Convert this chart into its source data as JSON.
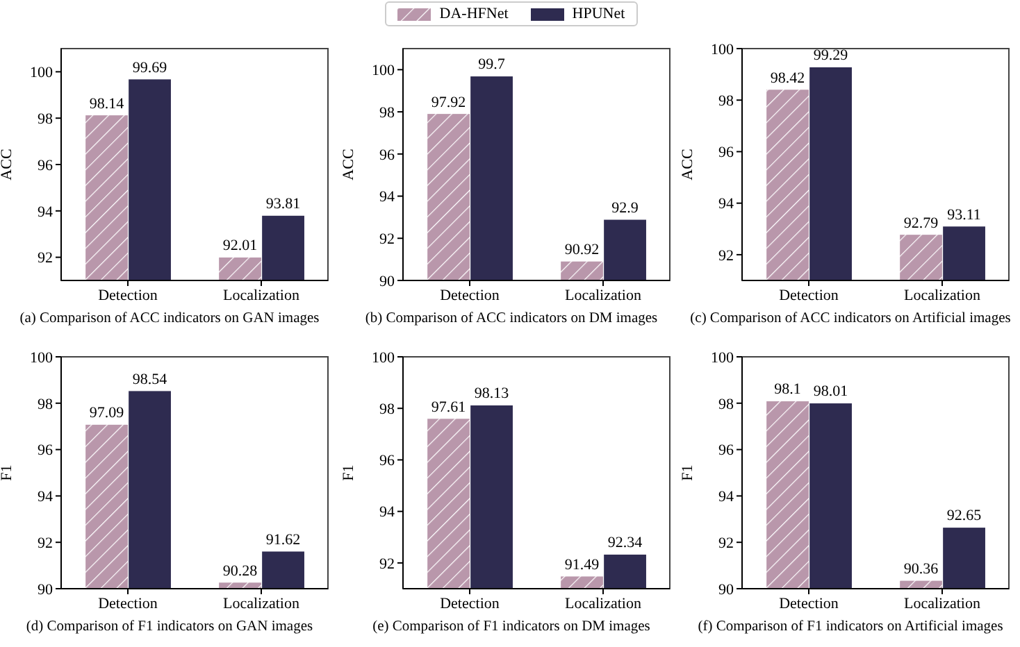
{
  "chart_data": [
    {
      "type": "bar",
      "title": "(a) Comparison of ACC indicators on GAN images",
      "ylabel": "ACC",
      "categories": [
        "Detection",
        "Localization"
      ],
      "series": [
        {
          "name": "DA-HFNet",
          "color": "#b997ab",
          "values": [
            98.14,
            92.01
          ]
        },
        {
          "name": "HPUNet",
          "color": "#2e2b50",
          "values": [
            99.69,
            93.81
          ]
        }
      ],
      "ylim": [
        91,
        101
      ],
      "yticks": [
        92,
        94,
        96,
        98,
        100
      ],
      "data_labels": true,
      "grid": false,
      "legend": "top"
    },
    {
      "type": "bar",
      "title": "(b) Comparison of ACC indicators on DM images",
      "ylabel": "ACC",
      "categories": [
        "Detection",
        "Localization"
      ],
      "series": [
        {
          "color": "#b997ab",
          "values": [
            97.92,
            90.92
          ]
        },
        {
          "color": "#2e2b50",
          "values": [
            99.7,
            92.9
          ]
        }
      ],
      "ylim": [
        90,
        101
      ],
      "yticks": [
        90,
        92,
        94,
        96,
        98,
        100
      ],
      "data_labels": true,
      "grid": false
    },
    {
      "type": "bar",
      "title": "(c) Comparison of ACC indicators on Artificial images",
      "ylabel": "ACC",
      "categories": [
        "Detection",
        "Localization"
      ],
      "series": [
        {
          "color": "#b997ab",
          "values": [
            98.42,
            92.79
          ]
        },
        {
          "color": "#2e2b50",
          "values": [
            99.29,
            93.11
          ]
        }
      ],
      "ylim": [
        91,
        100
      ],
      "yticks": [
        92,
        94,
        96,
        98,
        100
      ],
      "data_labels": true,
      "grid": false
    },
    {
      "type": "bar",
      "title": "(d) Comparison of F1 indicators on GAN images",
      "ylabel": "F1",
      "categories": [
        "Detection",
        "Localization"
      ],
      "series": [
        {
          "color": "#b997ab",
          "values": [
            97.09,
            90.28
          ]
        },
        {
          "color": "#2e2b50",
          "values": [
            98.54,
            91.62
          ]
        }
      ],
      "ylim": [
        90,
        100
      ],
      "yticks": [
        90,
        92,
        94,
        96,
        98,
        100
      ],
      "data_labels": true,
      "grid": false
    },
    {
      "type": "bar",
      "title": "(e) Comparison of F1 indicators on DM images",
      "ylabel": "F1",
      "categories": [
        "Detection",
        "Localization"
      ],
      "series": [
        {
          "color": "#b997ab",
          "values": [
            97.61,
            91.49
          ]
        },
        {
          "color": "#2e2b50",
          "values": [
            98.13,
            92.34
          ]
        }
      ],
      "ylim": [
        91,
        100
      ],
      "yticks": [
        92,
        94,
        96,
        98,
        100
      ],
      "data_labels": true,
      "grid": false
    },
    {
      "type": "bar",
      "title": "(f) Comparison of F1 indicators on Artificial images",
      "ylabel": "F1",
      "categories": [
        "Detection",
        "Localization"
      ],
      "series": [
        {
          "color": "#b997ab",
          "values": [
            98.1,
            90.36
          ]
        },
        {
          "color": "#2e2b50",
          "values": [
            98.01,
            92.65
          ]
        }
      ],
      "ylim": [
        90,
        100
      ],
      "yticks": [
        90,
        92,
        94,
        96,
        98,
        100
      ],
      "data_labels": true,
      "grid": false
    }
  ]
}
